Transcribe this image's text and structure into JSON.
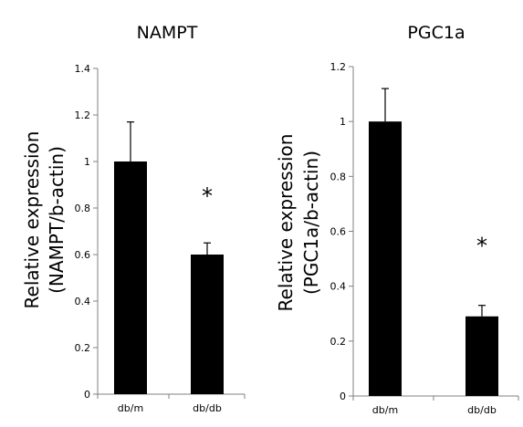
{
  "chart_data": [
    {
      "type": "bar",
      "title": "NAMPT",
      "ylabel_lines": [
        "Relative expression",
        "(NAMPT/b-actin)"
      ],
      "xlabel": "",
      "categories": [
        "db/m",
        "db/db"
      ],
      "values": [
        1.0,
        0.6
      ],
      "errors": [
        0.17,
        0.05
      ],
      "significance": [
        "",
        "*"
      ],
      "ylim": [
        0,
        1.4
      ],
      "yticks": [
        0,
        0.2,
        0.4,
        0.6,
        0.8,
        1,
        1.2,
        1.4
      ],
      "ytick_labels": [
        "0",
        "0.2",
        "0.4",
        "0.6",
        "0.8",
        "1",
        "1.2",
        "1.4"
      ],
      "bar_color": "#000000",
      "grid": false,
      "legend": "none"
    },
    {
      "type": "bar",
      "title": "PGC1a",
      "ylabel_lines": [
        "Relative expression",
        "(PGC1a/b-actin)"
      ],
      "xlabel": "",
      "categories": [
        "db/m",
        "db/db"
      ],
      "values": [
        1.0,
        0.29
      ],
      "errors": [
        0.12,
        0.04
      ],
      "significance": [
        "",
        "*"
      ],
      "ylim": [
        0,
        1.2
      ],
      "yticks": [
        0,
        0.2,
        0.4,
        0.6,
        0.8,
        1,
        1.2
      ],
      "ytick_labels": [
        "0",
        "0.2",
        "0.4",
        "0.6",
        "0.8",
        "1",
        "1.2"
      ],
      "bar_color": "#000000",
      "grid": false,
      "legend": "none"
    }
  ]
}
